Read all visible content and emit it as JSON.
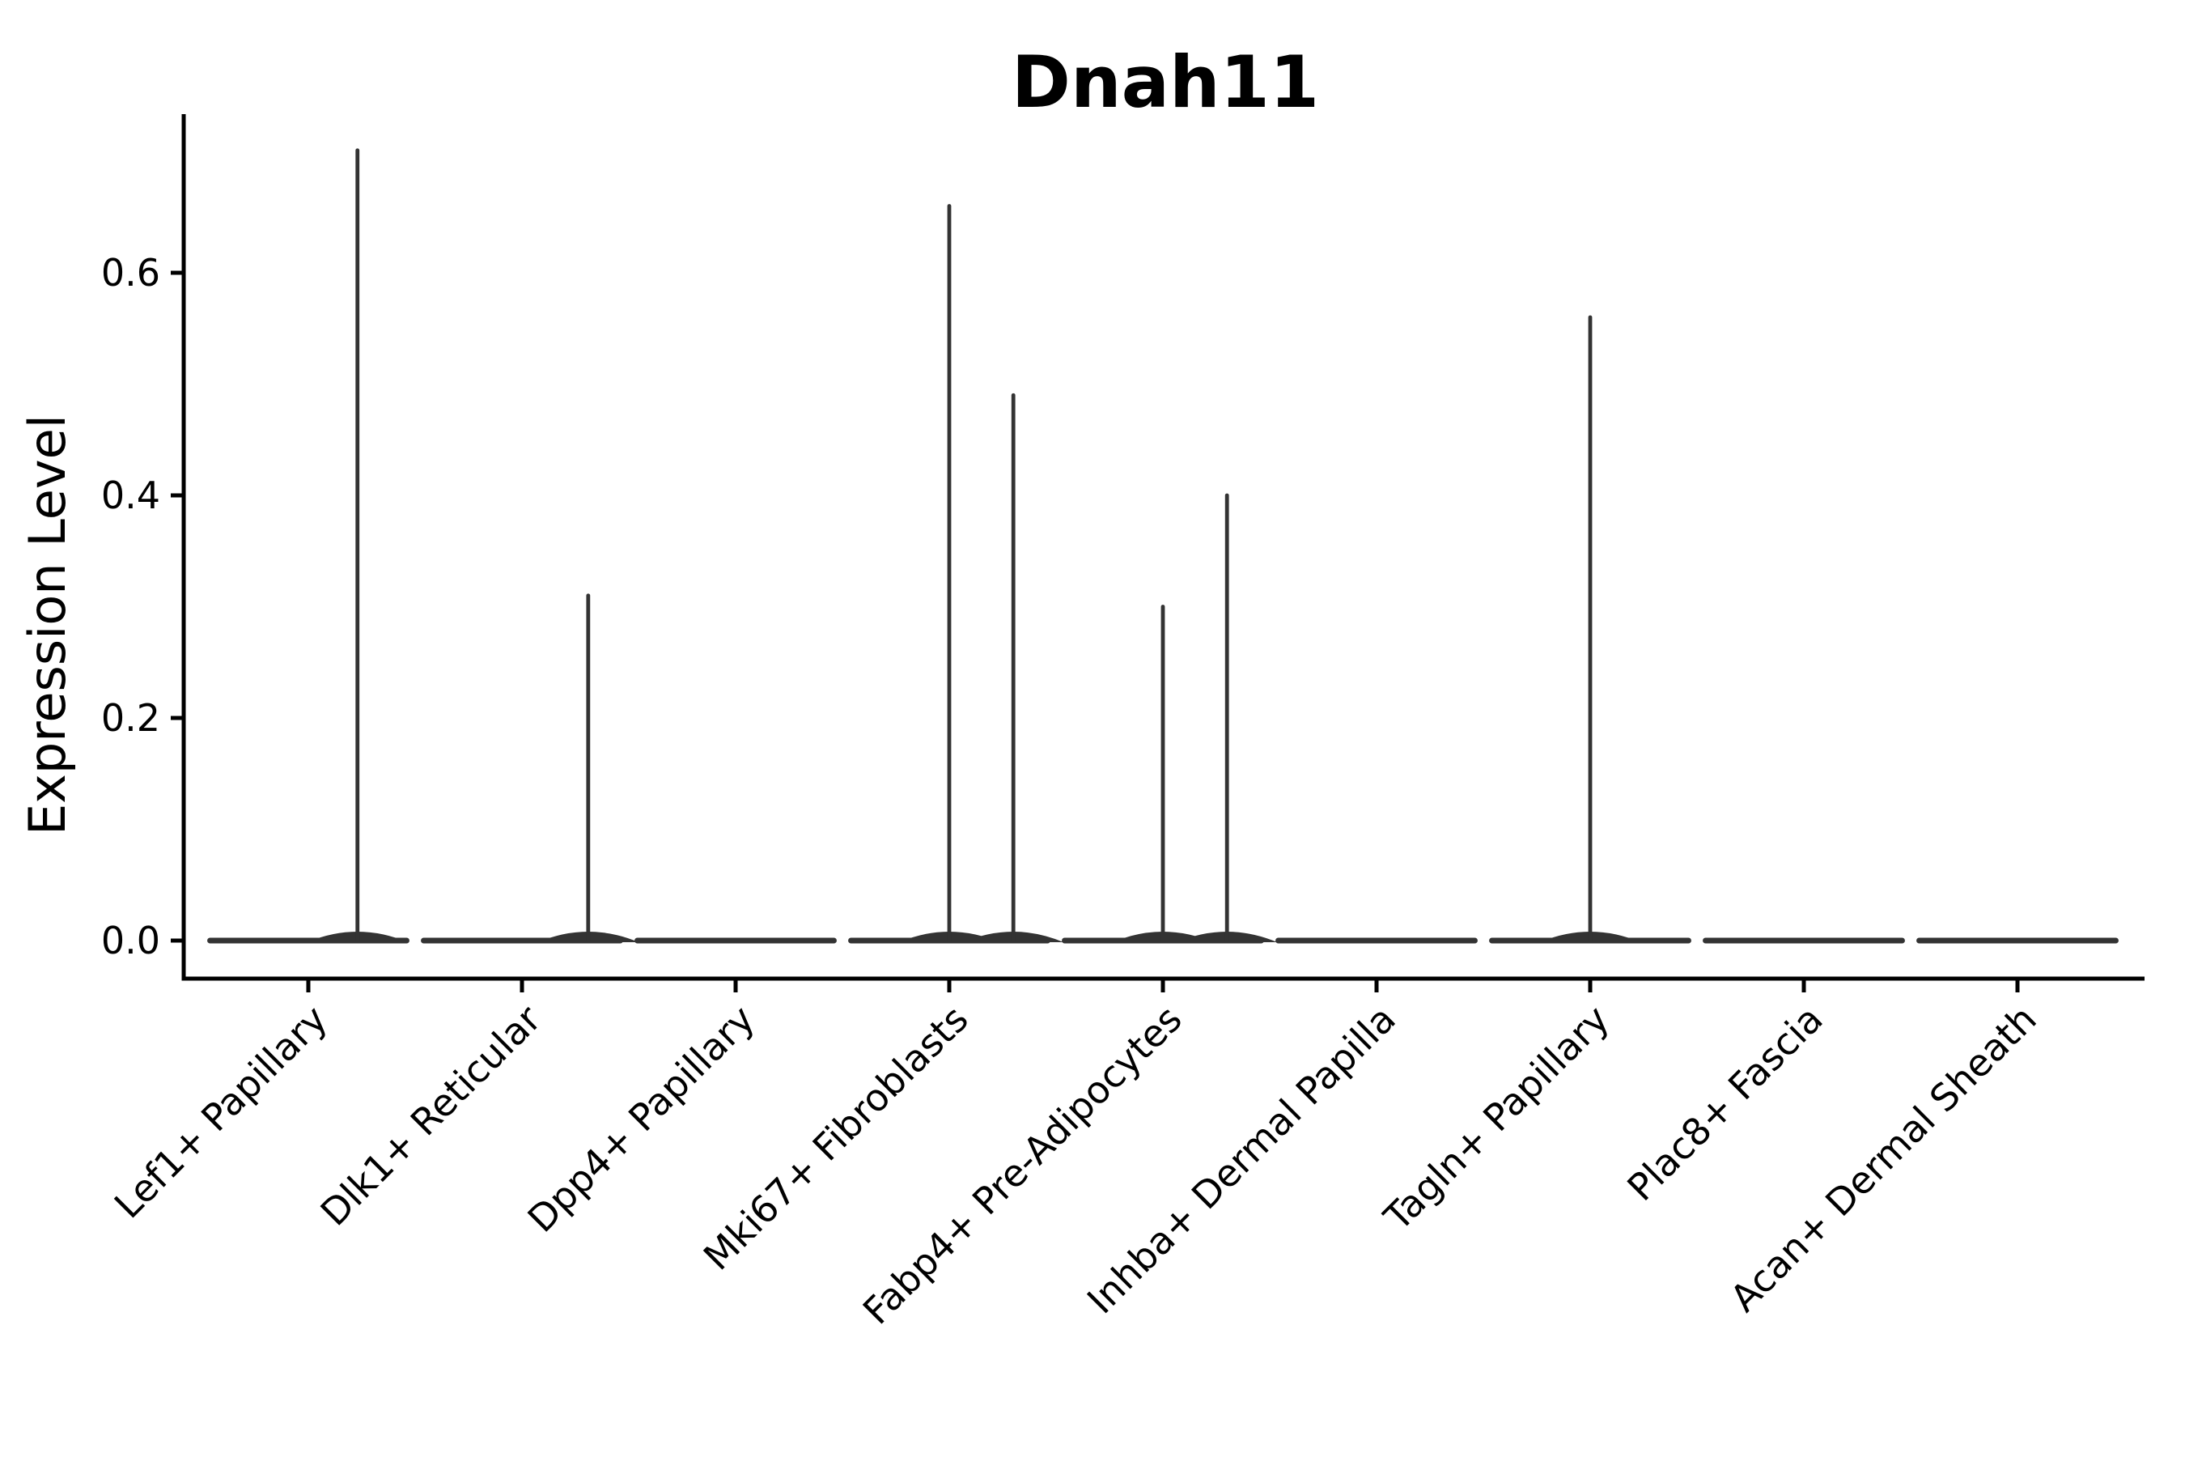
{
  "chart_data": {
    "type": "violin",
    "title": "Dnah11",
    "ylabel": "Expression Level",
    "xlabel": "",
    "legend": "none",
    "grid": false,
    "y_ticks": [
      0.0,
      0.2,
      0.4,
      0.6
    ],
    "y_tick_labels": [
      "0.0",
      "0.2",
      "0.4",
      "0.6"
    ],
    "ylim": [
      -0.03,
      0.74
    ],
    "categories": [
      "Lef1+ Papillary",
      "Dlk1+ Reticular",
      "Dpp4+ Papillary",
      "Mki67+ Fibroblasts",
      "Fabp4+ Pre-Adipocytes",
      "Inhba+ Dermal Papilla",
      "Tagln+ Papillary",
      "Plac8+ Fascia",
      "Acan+ Dermal Sheath"
    ],
    "series": [
      {
        "name": "Lef1+ Papillary",
        "baseline_value": 0.0,
        "max_expression": 0.71,
        "spikes": [
          {
            "offset": 0.23,
            "value": 0.71
          }
        ]
      },
      {
        "name": "Dlk1+ Reticular",
        "baseline_value": 0.0,
        "max_expression": 0.31,
        "spikes": [
          {
            "offset": 0.31,
            "value": 0.31
          }
        ]
      },
      {
        "name": "Dpp4+ Papillary",
        "baseline_value": 0.0,
        "max_expression": 0.0,
        "spikes": []
      },
      {
        "name": "Mki67+ Fibroblasts",
        "baseline_value": 0.0,
        "max_expression": 0.66,
        "spikes": [
          {
            "offset": 0.0,
            "value": 0.66
          },
          {
            "offset": 0.3,
            "value": 0.49
          }
        ]
      },
      {
        "name": "Fabp4+ Pre-Adipocytes",
        "baseline_value": 0.0,
        "max_expression": 0.4,
        "spikes": [
          {
            "offset": 0.0,
            "value": 0.3
          },
          {
            "offset": 0.3,
            "value": 0.4
          }
        ]
      },
      {
        "name": "Inhba+ Dermal Papilla",
        "baseline_value": 0.0,
        "max_expression": 0.0,
        "spikes": []
      },
      {
        "name": "Tagln+ Papillary",
        "baseline_value": 0.0,
        "max_expression": 0.56,
        "spikes": [
          {
            "offset": 0.0,
            "value": 0.56
          }
        ]
      },
      {
        "name": "Plac8+ Fascia",
        "baseline_value": 0.0,
        "max_expression": 0.0,
        "spikes": []
      },
      {
        "name": "Acan+ Dermal Sheath",
        "baseline_value": 0.0,
        "max_expression": 0.0,
        "spikes": []
      }
    ],
    "violin_half_width": 0.46
  },
  "colors": {
    "background": "#ffffff",
    "axis": "#000000",
    "text": "#000000",
    "violin": "#333333"
  }
}
